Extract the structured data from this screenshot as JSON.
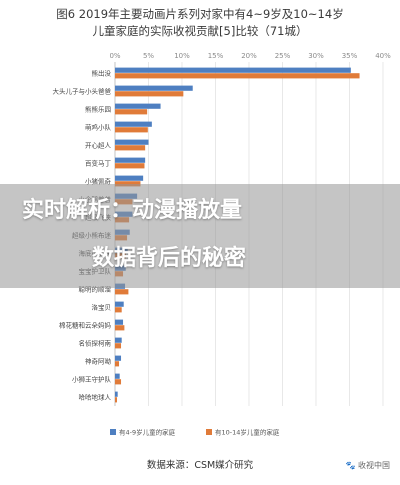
{
  "chart_data": {
    "type": "bar",
    "orientation": "horizontal",
    "title_line1": "图6  2019年主要动画片系列对家中有4~9岁及10~14岁",
    "title_line2": "儿童家庭的实际收视贡献[5]比较（71城）",
    "x_ticks": [
      "0%",
      "5%",
      "10%",
      "15%",
      "20%",
      "25%",
      "30%",
      "35%",
      "40%"
    ],
    "xlim": [
      0,
      40
    ],
    "categories": [
      "熊出没",
      "大头儿子与小头爸爸",
      "熊熊乐园",
      "萌鸡小队",
      "开心超人",
      "百变马丁",
      "小猪佩奇",
      "小企鹅普普",
      "超级飞侠",
      "超级小熊布迷",
      "海底小纵队",
      "宝宝护卫队",
      "聪明的顺溜",
      "洛宝贝",
      "棉花糖和云朵妈妈",
      "名侦探柯南",
      "神奇阿呦",
      "小狮王守护队",
      "哈哈地球人"
    ],
    "series": [
      {
        "name": "有4-9岁儿童的家庭",
        "color": "#4e7fc1",
        "values": [
          35.2,
          11.6,
          6.8,
          5.5,
          5.0,
          4.5,
          4.2,
          3.3,
          2.6,
          2.2,
          1.9,
          1.6,
          1.5,
          1.3,
          1.2,
          1.0,
          0.9,
          0.7,
          0.4
        ]
      },
      {
        "name": "有10-14岁儿童的家庭",
        "color": "#e07b39",
        "values": [
          36.5,
          10.2,
          4.8,
          4.9,
          4.5,
          4.4,
          3.8,
          2.6,
          2.1,
          1.8,
          1.6,
          1.2,
          2.0,
          1.0,
          1.4,
          0.9,
          0.6,
          0.9,
          0.3
        ]
      }
    ],
    "grid": true,
    "legend": "bottom"
  },
  "overlay": {
    "line1": "实时解析：动漫播放量",
    "line2": "数据背后的秘密"
  },
  "source_label": "数据来源：CSM媒介研究",
  "watermark": "🐾 收视中国"
}
